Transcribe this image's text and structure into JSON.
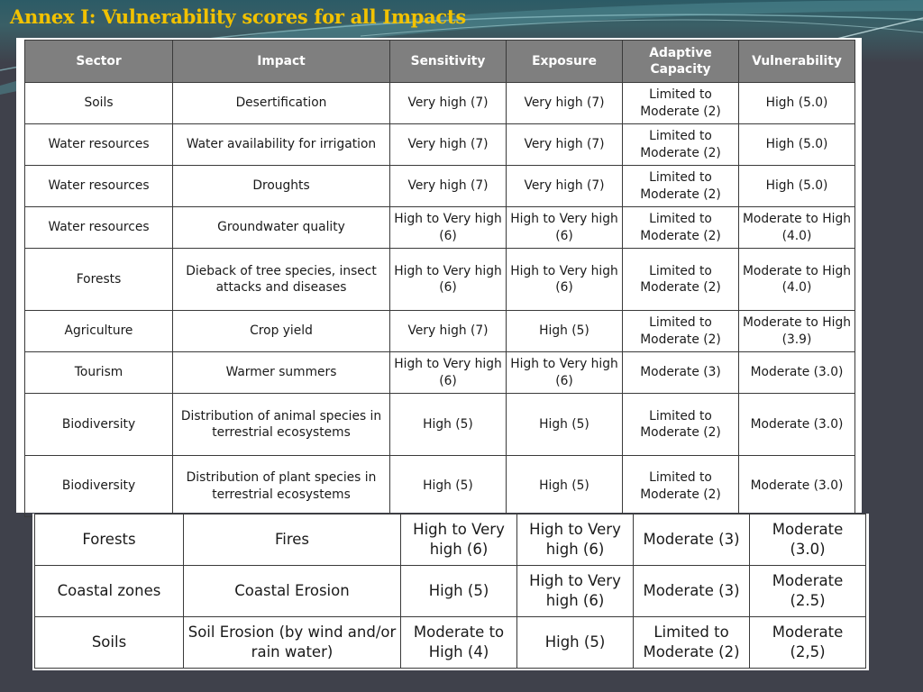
{
  "title": "Annex I: Vulnerability scores for all Impacts",
  "columns": [
    "Sector",
    "Impact",
    "Sensitivity",
    "Exposure",
    "Adaptive Capacity",
    "Vulnerability"
  ],
  "rows": [
    [
      "Soils",
      "Desertification",
      "Very high (7)",
      "Very high (7)",
      "Limited to Moderate (2)",
      "High (5.0)"
    ],
    [
      "Water resources",
      "Water availability for irrigation",
      "Very high (7)",
      "Very high (7)",
      "Limited to Moderate (2)",
      "High (5.0)"
    ],
    [
      "Water resources",
      "Droughts",
      "Very high (7)",
      "Very high (7)",
      "Limited to Moderate (2)",
      "High (5.0)"
    ],
    [
      "Water resources",
      "Groundwater quality",
      "High to Very high (6)",
      "High to Very high (6)",
      "Limited to Moderate (2)",
      "Moderate to High (4.0)"
    ],
    [
      "Forests",
      "Dieback of tree species, insect attacks and diseases",
      "High to Very high (6)",
      "High to Very high (6)",
      "Limited to Moderate (2)",
      "Moderate to High (4.0)"
    ],
    [
      "Agriculture",
      "Crop yield",
      "Very high (7)",
      "High (5)",
      "Limited to Moderate (2)",
      "Moderate to High (3.9)"
    ],
    [
      "Tourism",
      "Warmer summers",
      "High to Very high (6)",
      "High to Very high (6)",
      "Moderate (3)",
      "Moderate (3.0)"
    ],
    [
      "Biodiversity",
      "Distribution of animal species in terrestrial ecosystems",
      "High (5)",
      "High (5)",
      "Limited to Moderate (2)",
      "Moderate (3.0)"
    ],
    [
      "Biodiversity",
      "Distribution of plant species in terrestrial ecosystems",
      "High (5)",
      "High (5)",
      "Limited to Moderate (2)",
      "Moderate (3.0)"
    ]
  ],
  "rows_continued": [
    [
      "Forests",
      "Fires",
      "High to Very high (6)",
      "High to Very high (6)",
      "Moderate (3)",
      "Moderate (3.0)"
    ],
    [
      "Coastal zones",
      "Coastal Erosion",
      "High (5)",
      "High to Very high (6)",
      "Moderate (3)",
      "Moderate (2.5)"
    ],
    [
      "Soils",
      "Soil Erosion (by wind and/or rain water)",
      "Moderate to High (4)",
      "High (5)",
      "Limited to Moderate (2)",
      "Moderate (2,5)"
    ]
  ],
  "colors": {
    "title": "#f2c200",
    "background": "#3f414b",
    "header": "#7f7f7f"
  }
}
